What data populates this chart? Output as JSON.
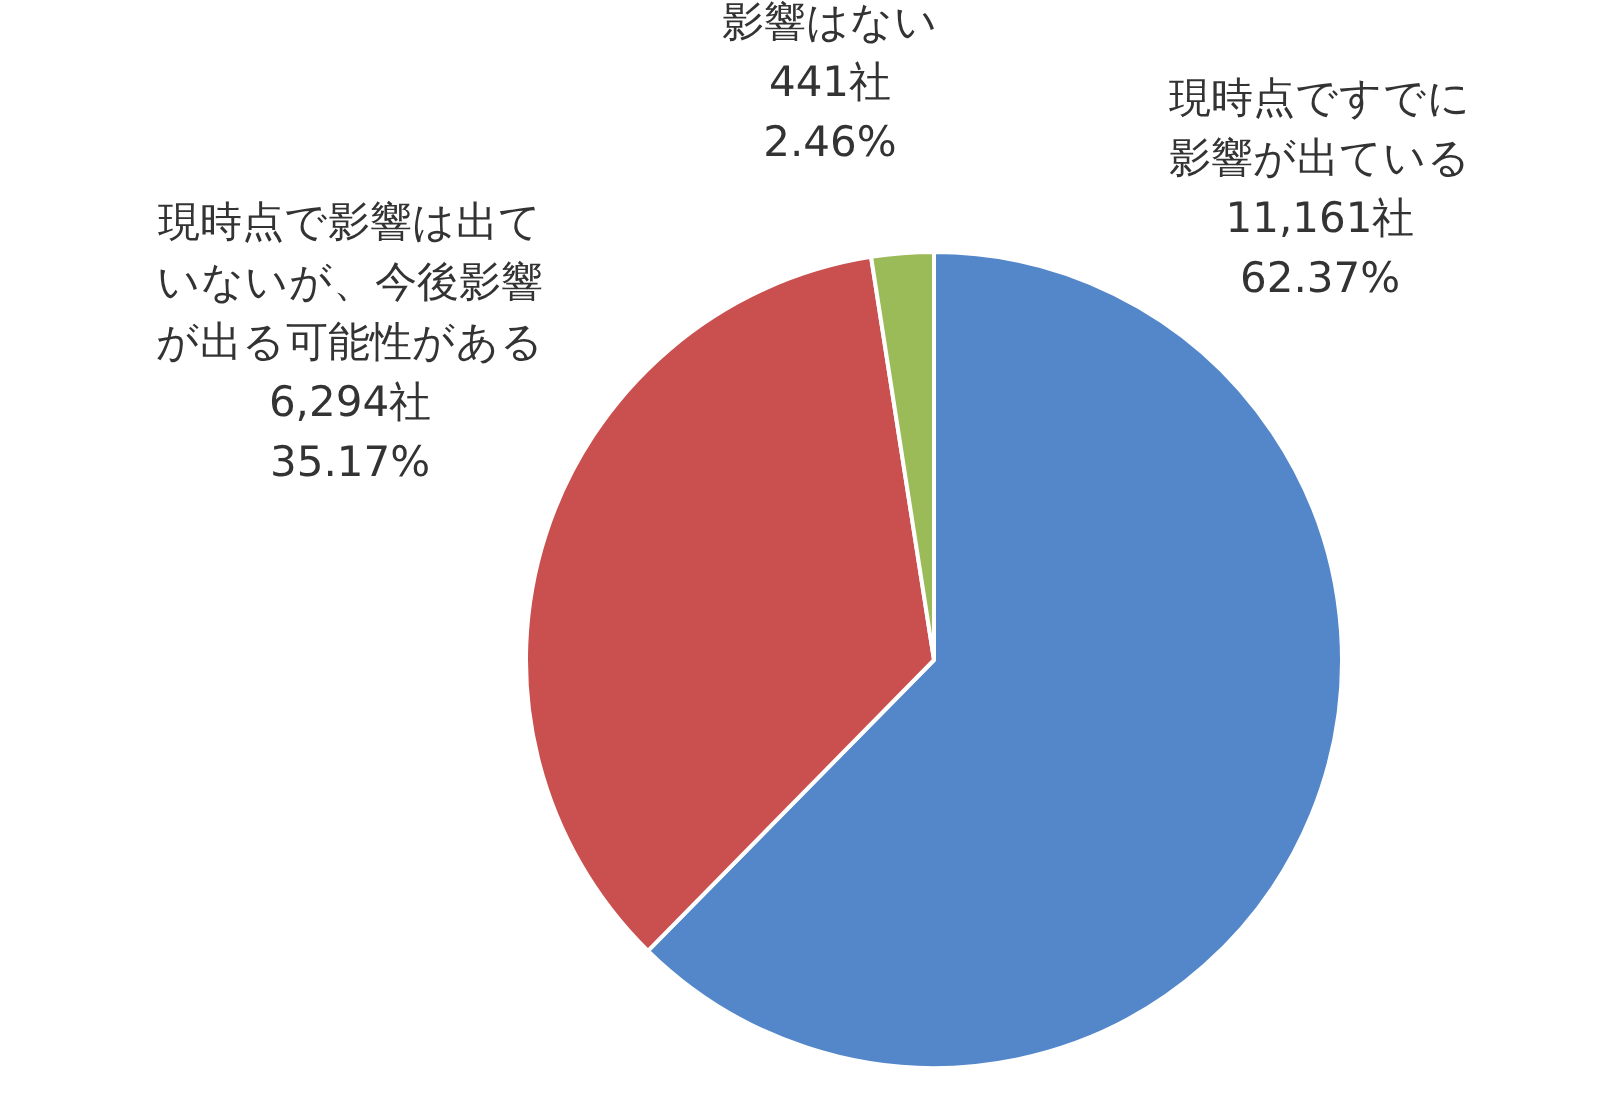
{
  "chart_data": {
    "type": "pie",
    "categories": [
      "現時点ですでに影響が出ている",
      "現時点で影響は出ていないが、今後影響が出る可能性がある",
      "影響はない"
    ],
    "values": [
      11161,
      6294,
      441
    ],
    "colors": [
      "#5487c9",
      "#c9504e",
      "#9bbb59"
    ],
    "value_labels": [
      "11,161社\n62.37%",
      "6,294社\n35.17%",
      "441社\n2.46%"
    ],
    "legend": false
  }
}
